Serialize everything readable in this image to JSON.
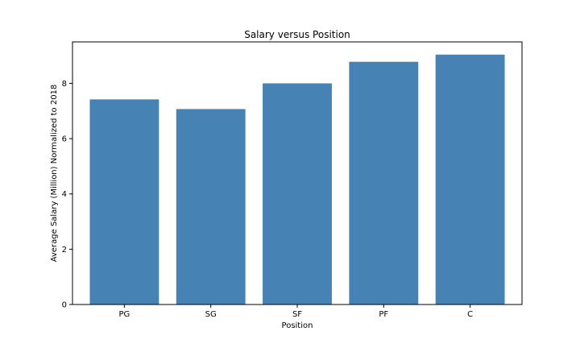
{
  "chart_data": {
    "type": "bar",
    "title": "Salary versus Position",
    "xlabel": "Position",
    "ylabel": "Average Salary (Million) Normalized to 2018",
    "categories": [
      "PG",
      "SG",
      "SF",
      "PF",
      "C"
    ],
    "values": [
      7.42,
      7.07,
      8.0,
      8.78,
      9.04
    ],
    "ylim": [
      0,
      9.5
    ],
    "yticks": [
      0,
      2,
      4,
      6,
      8
    ],
    "grid": false,
    "legend": "none",
    "bar_color": "#4682b4"
  }
}
